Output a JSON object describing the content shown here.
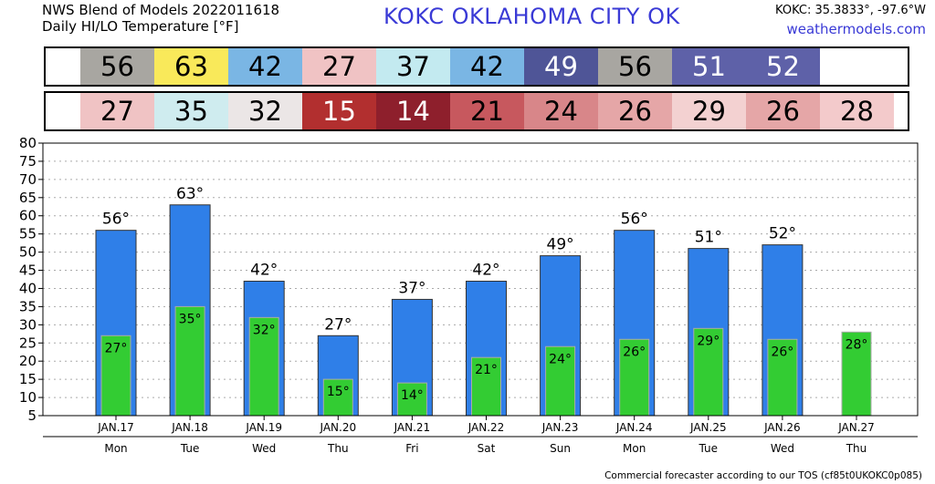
{
  "header": {
    "line1": "NWS Blend of Models 2022011618",
    "line2": "Daily HI/LO Temperature [°F]",
    "station_title": "KOKC   OKLAHOMA CITY   OK",
    "coords": "KOKC: 35.3833°, -97.6°W",
    "site": "weathermodels.com"
  },
  "footer": "Commercial forecaster according to our TOS (cf85t0UKOKC0p085)",
  "colors": {
    "bar_hi": "#2f7fe8",
    "bar_lo": "#33cc33",
    "grid": "#aaaaaa"
  },
  "hi_strip": [
    {
      "value": "56",
      "color": "#a8a6a1",
      "text": "#000000"
    },
    {
      "value": "63",
      "color": "#f9e95a",
      "text": "#000000"
    },
    {
      "value": "42",
      "color": "#7ab6e4",
      "text": "#000000"
    },
    {
      "value": "27",
      "color": "#f0c3c4",
      "text": "#000000"
    },
    {
      "value": "37",
      "color": "#c3eaf0",
      "text": "#000000"
    },
    {
      "value": "42",
      "color": "#7ab6e4",
      "text": "#000000"
    },
    {
      "value": "49",
      "color": "#4f5597",
      "text": "#ffffff"
    },
    {
      "value": "56",
      "color": "#a8a6a1",
      "text": "#000000"
    },
    {
      "value": "51",
      "color": "#5e61a8",
      "text": "#ffffff"
    },
    {
      "value": "52",
      "color": "#5e61a8",
      "text": "#ffffff"
    }
  ],
  "lo_strip": [
    {
      "value": "27",
      "color": "#f0c3c4",
      "text": "#000000"
    },
    {
      "value": "35",
      "color": "#cfecef",
      "text": "#000000"
    },
    {
      "value": "32",
      "color": "#ebe6e6",
      "text": "#000000"
    },
    {
      "value": "15",
      "color": "#b22f2f",
      "text": "#ffffff"
    },
    {
      "value": "14",
      "color": "#8e1f2c",
      "text": "#ffffff"
    },
    {
      "value": "21",
      "color": "#c7585e",
      "text": "#000000"
    },
    {
      "value": "24",
      "color": "#d88689",
      "text": "#000000"
    },
    {
      "value": "26",
      "color": "#e5a6a7",
      "text": "#000000"
    },
    {
      "value": "29",
      "color": "#f3d1d1",
      "text": "#000000"
    },
    {
      "value": "26",
      "color": "#e5a6a7",
      "text": "#000000"
    },
    {
      "value": "28",
      "color": "#f3cacb",
      "text": "#000000"
    }
  ],
  "chart_data": {
    "type": "bar",
    "categories": [
      "JAN.17",
      "JAN.18",
      "JAN.19",
      "JAN.20",
      "JAN.21",
      "JAN.22",
      "JAN.23",
      "JAN.24",
      "JAN.25",
      "JAN.26",
      "JAN.27"
    ],
    "weekdays": [
      "Mon",
      "Tue",
      "Wed",
      "Thu",
      "Fri",
      "Sat",
      "Sun",
      "Mon",
      "Tue",
      "Wed",
      "Thu"
    ],
    "series": [
      {
        "values": [
          56,
          63,
          42,
          27,
          37,
          42,
          49,
          56,
          51,
          52,
          null
        ]
      },
      {
        "values": [
          27,
          35,
          32,
          15,
          14,
          21,
          24,
          26,
          29,
          26,
          28
        ]
      }
    ],
    "hi_labels": [
      "56°",
      "63°",
      "42°",
      "27°",
      "37°",
      "42°",
      "49°",
      "56°",
      "51°",
      "52°",
      ""
    ],
    "lo_labels": [
      "27°",
      "35°",
      "32°",
      "15°",
      "14°",
      "21°",
      "24°",
      "26°",
      "29°",
      "26°",
      "28°"
    ],
    "ylim": [
      5,
      80
    ],
    "yticks": [
      "5",
      "10",
      "15",
      "20",
      "25",
      "30",
      "35",
      "40",
      "45",
      "50",
      "55",
      "60",
      "65",
      "70",
      "75",
      "80"
    ],
    "grid": true
  }
}
